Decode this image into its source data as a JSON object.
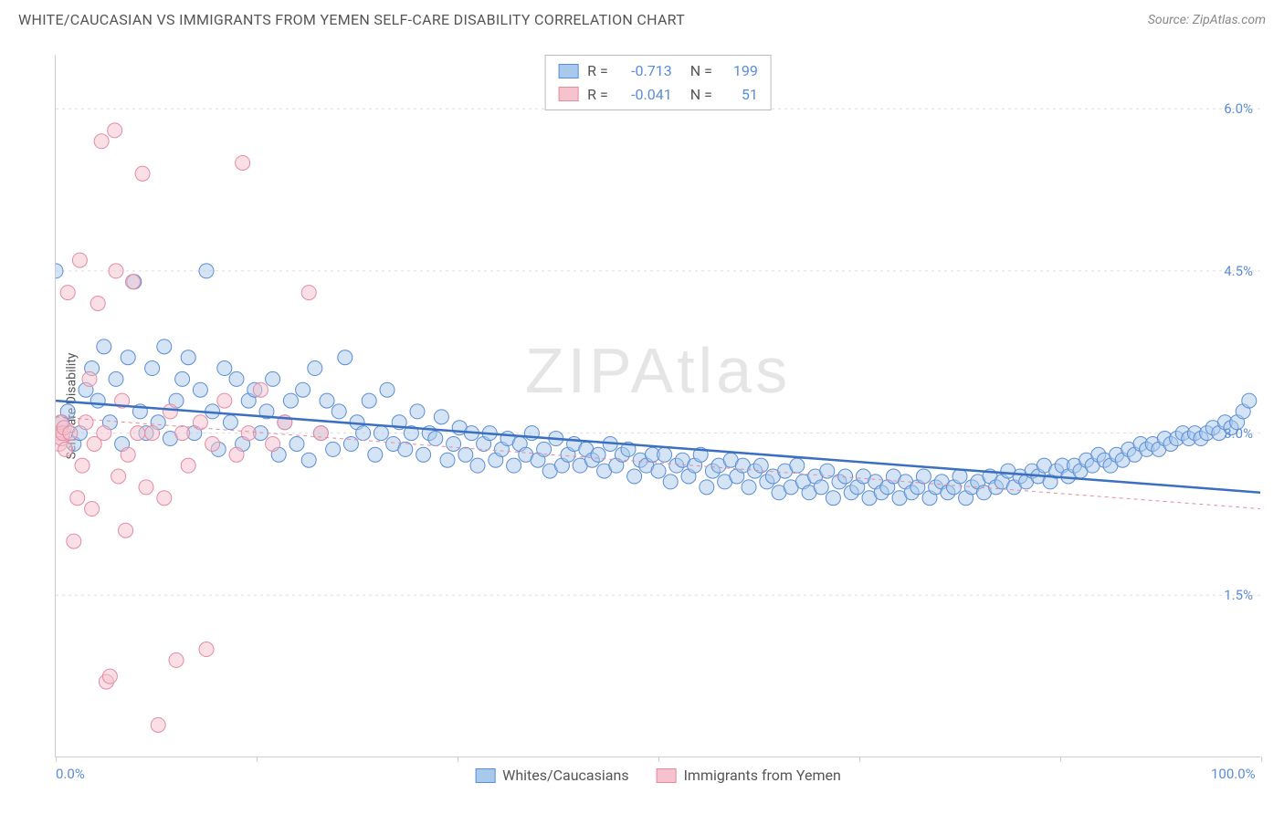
{
  "header": {
    "title": "WHITE/CAUCASIAN VS IMMIGRANTS FROM YEMEN SELF-CARE DISABILITY CORRELATION CHART",
    "source": "Source: ZipAtlas.com"
  },
  "watermark": "ZIPAtlas",
  "chart": {
    "type": "scatter",
    "ylabel": "Self-Care Disability",
    "xlim": [
      0,
      100
    ],
    "ylim": [
      0,
      6.5
    ],
    "xticks": [
      0,
      16.67,
      33.33,
      50,
      66.67,
      83.33,
      100
    ],
    "xtick_labels_shown": {
      "0": "0.0%",
      "100": "100.0%"
    },
    "yticks": [
      1.5,
      3.0,
      4.5,
      6.0
    ],
    "ytick_labels": [
      "1.5%",
      "3.0%",
      "4.5%",
      "6.0%"
    ],
    "grid_color": "#dddddd",
    "axis_color": "#cccccc",
    "background_color": "#ffffff",
    "label_fontsize": 14,
    "tick_fontsize": 15,
    "tick_color": "#5b8dd6",
    "marker_radius": 8,
    "marker_opacity": 0.5,
    "series": [
      {
        "name": "Whites/Caucasians",
        "fill": "#a9c9ec",
        "stroke": "#5b8dd6",
        "r_value": "-0.713",
        "n_value": "199",
        "trend": {
          "y_at_x0": 3.3,
          "y_at_x100": 2.45,
          "stroke": "#3b6fc0",
          "width": 2.5,
          "dash": ""
        },
        "points": [
          [
            0,
            4.5
          ],
          [
            0.5,
            3.1
          ],
          [
            1,
            3.2
          ],
          [
            1.5,
            2.9
          ],
          [
            2,
            3.0
          ],
          [
            2.5,
            3.4
          ],
          [
            3,
            3.6
          ],
          [
            3.5,
            3.3
          ],
          [
            4,
            3.8
          ],
          [
            4.5,
            3.1
          ],
          [
            5,
            3.5
          ],
          [
            5.5,
            2.9
          ],
          [
            6,
            3.7
          ],
          [
            6.5,
            4.4
          ],
          [
            7,
            3.2
          ],
          [
            7.5,
            3.0
          ],
          [
            8,
            3.6
          ],
          [
            8.5,
            3.1
          ],
          [
            9,
            3.8
          ],
          [
            9.5,
            2.95
          ],
          [
            10,
            3.3
          ],
          [
            10.5,
            3.5
          ],
          [
            11,
            3.7
          ],
          [
            11.5,
            3.0
          ],
          [
            12,
            3.4
          ],
          [
            12.5,
            4.5
          ],
          [
            13,
            3.2
          ],
          [
            13.5,
            2.85
          ],
          [
            14,
            3.6
          ],
          [
            14.5,
            3.1
          ],
          [
            15,
            3.5
          ],
          [
            15.5,
            2.9
          ],
          [
            16,
            3.3
          ],
          [
            16.5,
            3.4
          ],
          [
            17,
            3.0
          ],
          [
            17.5,
            3.2
          ],
          [
            18,
            3.5
          ],
          [
            18.5,
            2.8
          ],
          [
            19,
            3.1
          ],
          [
            19.5,
            3.3
          ],
          [
            20,
            2.9
          ],
          [
            20.5,
            3.4
          ],
          [
            21,
            2.75
          ],
          [
            21.5,
            3.6
          ],
          [
            22,
            3.0
          ],
          [
            22.5,
            3.3
          ],
          [
            23,
            2.85
          ],
          [
            23.5,
            3.2
          ],
          [
            24,
            3.7
          ],
          [
            24.5,
            2.9
          ],
          [
            25,
            3.1
          ],
          [
            25.5,
            3.0
          ],
          [
            26,
            3.3
          ],
          [
            26.5,
            2.8
          ],
          [
            27,
            3.0
          ],
          [
            27.5,
            3.4
          ],
          [
            28,
            2.9
          ],
          [
            28.5,
            3.1
          ],
          [
            29,
            2.85
          ],
          [
            29.5,
            3.0
          ],
          [
            30,
            3.2
          ],
          [
            30.5,
            2.8
          ],
          [
            31,
            3.0
          ],
          [
            31.5,
            2.95
          ],
          [
            32,
            3.15
          ],
          [
            32.5,
            2.75
          ],
          [
            33,
            2.9
          ],
          [
            33.5,
            3.05
          ],
          [
            34,
            2.8
          ],
          [
            34.5,
            3.0
          ],
          [
            35,
            2.7
          ],
          [
            35.5,
            2.9
          ],
          [
            36,
            3.0
          ],
          [
            36.5,
            2.75
          ],
          [
            37,
            2.85
          ],
          [
            37.5,
            2.95
          ],
          [
            38,
            2.7
          ],
          [
            38.5,
            2.9
          ],
          [
            39,
            2.8
          ],
          [
            39.5,
            3.0
          ],
          [
            40,
            2.75
          ],
          [
            40.5,
            2.85
          ],
          [
            41,
            2.65
          ],
          [
            41.5,
            2.95
          ],
          [
            42,
            2.7
          ],
          [
            42.5,
            2.8
          ],
          [
            43,
            2.9
          ],
          [
            43.5,
            2.7
          ],
          [
            44,
            2.85
          ],
          [
            44.5,
            2.75
          ],
          [
            45,
            2.8
          ],
          [
            45.5,
            2.65
          ],
          [
            46,
            2.9
          ],
          [
            46.5,
            2.7
          ],
          [
            47,
            2.8
          ],
          [
            47.5,
            2.85
          ],
          [
            48,
            2.6
          ],
          [
            48.5,
            2.75
          ],
          [
            49,
            2.7
          ],
          [
            49.5,
            2.8
          ],
          [
            50,
            2.65
          ],
          [
            50.5,
            2.8
          ],
          [
            51,
            2.55
          ],
          [
            51.5,
            2.7
          ],
          [
            52,
            2.75
          ],
          [
            52.5,
            2.6
          ],
          [
            53,
            2.7
          ],
          [
            53.5,
            2.8
          ],
          [
            54,
            2.5
          ],
          [
            54.5,
            2.65
          ],
          [
            55,
            2.7
          ],
          [
            55.5,
            2.55
          ],
          [
            56,
            2.75
          ],
          [
            56.5,
            2.6
          ],
          [
            57,
            2.7
          ],
          [
            57.5,
            2.5
          ],
          [
            58,
            2.65
          ],
          [
            58.5,
            2.7
          ],
          [
            59,
            2.55
          ],
          [
            59.5,
            2.6
          ],
          [
            60,
            2.45
          ],
          [
            60.5,
            2.65
          ],
          [
            61,
            2.5
          ],
          [
            61.5,
            2.7
          ],
          [
            62,
            2.55
          ],
          [
            62.5,
            2.45
          ],
          [
            63,
            2.6
          ],
          [
            63.5,
            2.5
          ],
          [
            64,
            2.65
          ],
          [
            64.5,
            2.4
          ],
          [
            65,
            2.55
          ],
          [
            65.5,
            2.6
          ],
          [
            66,
            2.45
          ],
          [
            66.5,
            2.5
          ],
          [
            67,
            2.6
          ],
          [
            67.5,
            2.4
          ],
          [
            68,
            2.55
          ],
          [
            68.5,
            2.45
          ],
          [
            69,
            2.5
          ],
          [
            69.5,
            2.6
          ],
          [
            70,
            2.4
          ],
          [
            70.5,
            2.55
          ],
          [
            71,
            2.45
          ],
          [
            71.5,
            2.5
          ],
          [
            72,
            2.6
          ],
          [
            72.5,
            2.4
          ],
          [
            73,
            2.5
          ],
          [
            73.5,
            2.55
          ],
          [
            74,
            2.45
          ],
          [
            74.5,
            2.5
          ],
          [
            75,
            2.6
          ],
          [
            75.5,
            2.4
          ],
          [
            76,
            2.5
          ],
          [
            76.5,
            2.55
          ],
          [
            77,
            2.45
          ],
          [
            77.5,
            2.6
          ],
          [
            78,
            2.5
          ],
          [
            78.5,
            2.55
          ],
          [
            79,
            2.65
          ],
          [
            79.5,
            2.5
          ],
          [
            80,
            2.6
          ],
          [
            80.5,
            2.55
          ],
          [
            81,
            2.65
          ],
          [
            81.5,
            2.6
          ],
          [
            82,
            2.7
          ],
          [
            82.5,
            2.55
          ],
          [
            83,
            2.65
          ],
          [
            83.5,
            2.7
          ],
          [
            84,
            2.6
          ],
          [
            84.5,
            2.7
          ],
          [
            85,
            2.65
          ],
          [
            85.5,
            2.75
          ],
          [
            86,
            2.7
          ],
          [
            86.5,
            2.8
          ],
          [
            87,
            2.75
          ],
          [
            87.5,
            2.7
          ],
          [
            88,
            2.8
          ],
          [
            88.5,
            2.75
          ],
          [
            89,
            2.85
          ],
          [
            89.5,
            2.8
          ],
          [
            90,
            2.9
          ],
          [
            90.5,
            2.85
          ],
          [
            91,
            2.9
          ],
          [
            91.5,
            2.85
          ],
          [
            92,
            2.95
          ],
          [
            92.5,
            2.9
          ],
          [
            93,
            2.95
          ],
          [
            93.5,
            3.0
          ],
          [
            94,
            2.95
          ],
          [
            94.5,
            3.0
          ],
          [
            95,
            2.95
          ],
          [
            95.5,
            3.0
          ],
          [
            96,
            3.05
          ],
          [
            96.5,
            3.0
          ],
          [
            97,
            3.1
          ],
          [
            97.5,
            3.05
          ],
          [
            98,
            3.1
          ],
          [
            98.5,
            3.2
          ],
          [
            99,
            3.3
          ]
        ]
      },
      {
        "name": "Immigrants from Yemen",
        "fill": "#f5c2cd",
        "stroke": "#e68aa0",
        "r_value": "-0.041",
        "n_value": "51",
        "trend": {
          "y_at_x0": 3.15,
          "y_at_x100": 2.3,
          "stroke": "#e68aa0",
          "width": 1,
          "dash": "4,4"
        },
        "points": [
          [
            0.2,
            3.0
          ],
          [
            0.3,
            2.9
          ],
          [
            0.4,
            3.1
          ],
          [
            0.5,
            2.95
          ],
          [
            0.6,
            3.0
          ],
          [
            0.7,
            3.05
          ],
          [
            0.8,
            2.85
          ],
          [
            1,
            4.3
          ],
          [
            1.2,
            3.0
          ],
          [
            1.5,
            2.0
          ],
          [
            1.8,
            2.4
          ],
          [
            2,
            4.6
          ],
          [
            2.2,
            2.7
          ],
          [
            2.5,
            3.1
          ],
          [
            2.8,
            3.5
          ],
          [
            3,
            2.3
          ],
          [
            3.2,
            2.9
          ],
          [
            3.5,
            4.2
          ],
          [
            3.8,
            5.7
          ],
          [
            4,
            3.0
          ],
          [
            4.2,
            0.7
          ],
          [
            4.5,
            0.75
          ],
          [
            4.9,
            5.8
          ],
          [
            5,
            4.5
          ],
          [
            5.2,
            2.6
          ],
          [
            5.5,
            3.3
          ],
          [
            5.8,
            2.1
          ],
          [
            6,
            2.8
          ],
          [
            6.4,
            4.4
          ],
          [
            6.8,
            3.0
          ],
          [
            7.2,
            5.4
          ],
          [
            7.5,
            2.5
          ],
          [
            8,
            3.0
          ],
          [
            8.5,
            0.3
          ],
          [
            9,
            2.4
          ],
          [
            9.5,
            3.2
          ],
          [
            10,
            0.9
          ],
          [
            10.5,
            3.0
          ],
          [
            11,
            2.7
          ],
          [
            12,
            3.1
          ],
          [
            12.5,
            1.0
          ],
          [
            13,
            2.9
          ],
          [
            14,
            3.3
          ],
          [
            15,
            2.8
          ],
          [
            15.5,
            5.5
          ],
          [
            16,
            3.0
          ],
          [
            17,
            3.4
          ],
          [
            18,
            2.9
          ],
          [
            19,
            3.1
          ],
          [
            21,
            4.3
          ],
          [
            22,
            3.0
          ]
        ]
      }
    ],
    "stats_box": {
      "labels": {
        "r": "R =",
        "n": "N ="
      }
    },
    "bottom_legend": [
      {
        "label": "Whites/Caucasians",
        "fill": "#a9c9ec",
        "stroke": "#5b8dd6"
      },
      {
        "label": "Immigrants from Yemen",
        "fill": "#f5c2cd",
        "stroke": "#e68aa0"
      }
    ]
  }
}
